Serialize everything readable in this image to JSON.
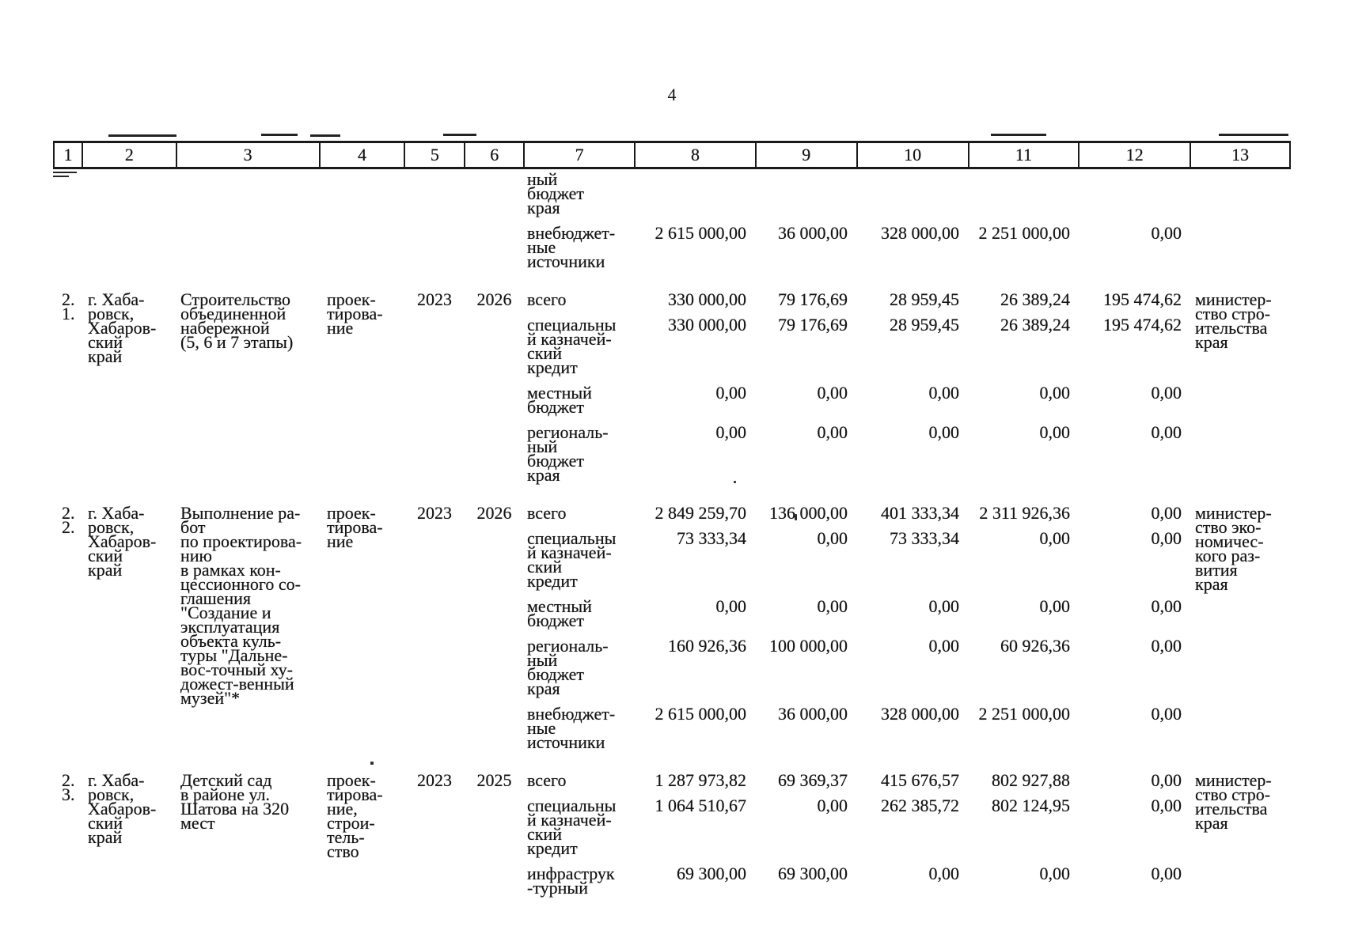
{
  "page_number": "4",
  "table": {
    "column_numbers": [
      "1",
      "2",
      "3",
      "4",
      "5",
      "6",
      "7",
      "8",
      "9",
      "10",
      "11",
      "12",
      "13"
    ],
    "rows": [
      {
        "num": "",
        "location": "",
        "name": "",
        "stage": "",
        "year_start": "",
        "year_end": "",
        "executor": "",
        "funding": [
          {
            "source": "ный\nбюджет\nкрая",
            "values": [
              "",
              "",
              "",
              "",
              ""
            ]
          },
          {
            "source": "внебюджет-\nные\nисточники",
            "values": [
              "2 615 000,00",
              "36 000,00",
              "328 000,00",
              "2 251 000,00",
              "0,00"
            ]
          }
        ]
      },
      {
        "num": "2.\n1.",
        "location": "г. Хаба-\nровск,\nХабаров-\nский\nкрай",
        "name": "Строительство\nобъединенной\nнабережной\n(5, 6 и 7 этапы)",
        "stage": "проек-\nтирова-\nние",
        "year_start": "2023",
        "year_end": "2026",
        "executor": "министер-\nство стро-\nительства\nкрая",
        "funding": [
          {
            "source": "всего",
            "values": [
              "330 000,00",
              "79 176,69",
              "28 959,45",
              "26 389,24",
              "195 474,62"
            ]
          },
          {
            "source": "специальны\nй казначей-\nский\nкредит",
            "values": [
              "330 000,00",
              "79 176,69",
              "28 959,45",
              "26 389,24",
              "195 474,62"
            ]
          },
          {
            "source": "местный\nбюджет",
            "values": [
              "0,00",
              "0,00",
              "0,00",
              "0,00",
              "0,00"
            ]
          },
          {
            "source": "региональ-\nный\nбюджет\nкрая",
            "values": [
              "0,00",
              "0,00",
              "0,00",
              "0,00",
              "0,00"
            ]
          }
        ]
      },
      {
        "num": "2.\n2.",
        "location": "г. Хаба-\nровск,\nХабаров-\nский\nкрай",
        "name": "Выполнение ра-\nбот\nпо проектирова-\nнию\nв рамках кон-\nцессионного со-\nглашения\n\"Создание и\nэксплуатация\nобъекта куль-\nтуры \"Дальне-\nвос-точный ху-\nдожест-венный\nмузей\"*",
        "stage": "проек-\nтирова-\nние",
        "year_start": "2023",
        "year_end": "2026",
        "executor": "министер-\nство эко-\nномичес-\nкого раз-\nвития\nкрая",
        "funding": [
          {
            "source": "всего",
            "values": [
              "2 849 259,70",
              "136 000,00",
              "401 333,34",
              "2 311 926,36",
              "0,00"
            ]
          },
          {
            "source": "специальны\nй казначей-\nский\nкредит",
            "values": [
              "73 333,34",
              "0,00",
              "73 333,34",
              "0,00",
              "0,00"
            ]
          },
          {
            "source": "местный\nбюджет",
            "values": [
              "0,00",
              "0,00",
              "0,00",
              "0,00",
              "0,00"
            ]
          },
          {
            "source": "региональ-\nный\nбюджет\nкрая",
            "values": [
              "160 926,36",
              "100 000,00",
              "0,00",
              "60 926,36",
              "0,00"
            ]
          },
          {
            "source": "внебюджет-\nные\nисточники",
            "values": [
              "2 615 000,00",
              "36 000,00",
              "328 000,00",
              "2 251 000,00",
              "0,00"
            ]
          }
        ]
      },
      {
        "num": "2.\n3.",
        "location": "г. Хаба-\nровск,\nХабаров-\nский\nкрай",
        "name": "Детский сад\nв районе ул.\nШатова на 320\nмест",
        "stage": "проек-\nтирова-\nние,\nстрои-\nтель-\nство",
        "year_start": "2023",
        "year_end": "2025",
        "executor": "министер-\nство стро-\nительства\nкрая",
        "funding": [
          {
            "source": "всего",
            "values": [
              "1 287 973,82",
              "69 369,37",
              "415 676,57",
              "802 927,88",
              "0,00"
            ]
          },
          {
            "source": "специальны\nй казначей-\nский\nкредит",
            "values": [
              "1 064 510,67",
              "0,00",
              "262 385,72",
              "802 124,95",
              "0,00"
            ]
          },
          {
            "source": "инфраструк\n-турный",
            "values": [
              "69 300,00",
              "69 300,00",
              "0,00",
              "0,00",
              "0,00"
            ]
          }
        ]
      }
    ]
  }
}
